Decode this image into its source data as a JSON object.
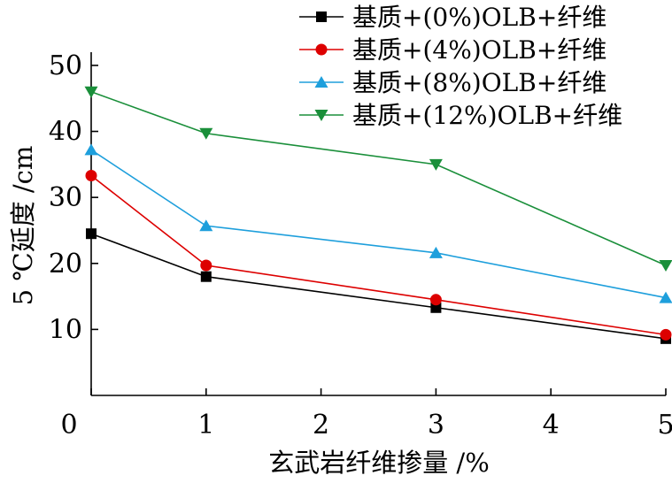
{
  "chart_data": {
    "type": "line",
    "title": "",
    "xlabel": "玄武岩纤维掺量 /%",
    "ylabel": "5 ℃延度 /cm",
    "xlim": [
      0,
      5
    ],
    "ylim": [
      0,
      52
    ],
    "x_ticks": [
      "0",
      "1",
      "2",
      "3",
      "4",
      "5"
    ],
    "y_ticks": [
      "10",
      "20",
      "30",
      "40",
      "50"
    ],
    "legend_position": "top-right",
    "series": [
      {
        "name": "基质+(0%)OLB+纤维",
        "color": "#000000",
        "marker": "square",
        "x": [
          0,
          1,
          3,
          5
        ],
        "values": [
          24.5,
          18.0,
          13.3,
          8.6
        ]
      },
      {
        "name": "基质+(4%)OLB+纤维",
        "color": "#dd0000",
        "marker": "circle",
        "x": [
          0,
          1,
          3,
          5
        ],
        "values": [
          33.3,
          19.7,
          14.5,
          9.2
        ]
      },
      {
        "name": "基质+(8%)OLB+纤维",
        "color": "#1e9fdc",
        "marker": "triangle-up",
        "x": [
          0,
          1,
          3,
          5
        ],
        "values": [
          37.2,
          25.7,
          21.6,
          14.8
        ]
      },
      {
        "name": "基质+(12%)OLB+纤维",
        "color": "#1a8f3a",
        "marker": "triangle-down",
        "x": [
          0,
          1,
          3,
          5
        ],
        "values": [
          46.0,
          39.7,
          35.0,
          19.7
        ]
      }
    ]
  }
}
